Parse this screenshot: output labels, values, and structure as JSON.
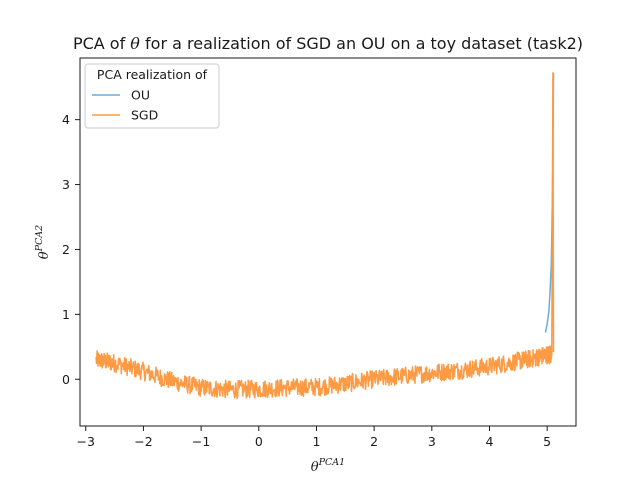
{
  "chart_data": {
    "type": "line",
    "title_pre": "PCA of ",
    "title_theta": "θ",
    "title_post": " for a realization of SGD an OU on a toy dataset (task2)",
    "xlabel_base": "θ",
    "xlabel_sup": "PCA1",
    "ylabel_base": "θ",
    "ylabel_sup": "PCA2",
    "xlim": [
      -3.1,
      5.5
    ],
    "ylim": [
      -0.72,
      4.95
    ],
    "xticks": [
      -3,
      -2,
      -1,
      0,
      1,
      2,
      3,
      4,
      5
    ],
    "xtick_labels": [
      "−3",
      "−2",
      "−1",
      "0",
      "1",
      "2",
      "3",
      "4",
      "5"
    ],
    "yticks": [
      0,
      1,
      2,
      3,
      4
    ],
    "ytick_labels": [
      "0",
      "1",
      "2",
      "3",
      "4"
    ],
    "grid": false,
    "legend": {
      "title": "PCA realization of",
      "placement": "top-left",
      "entries": [
        "OU",
        "SGD"
      ]
    },
    "series": [
      {
        "name": "OU",
        "color": "#6baed6",
        "x": [
          4.97,
          5.0,
          5.03,
          5.05,
          5.07,
          5.08,
          5.09,
          5.1,
          5.105,
          5.11
        ],
        "y": [
          0.72,
          0.85,
          1.05,
          1.35,
          1.75,
          2.2,
          2.8,
          3.5,
          4.1,
          4.72
        ]
      },
      {
        "name": "SGD",
        "color": "#fd9a43",
        "x": [
          -2.82,
          -2.5,
          -2.0,
          -1.5,
          -1.0,
          -0.5,
          0.0,
          0.5,
          1.0,
          1.5,
          2.0,
          2.5,
          3.0,
          3.5,
          4.0,
          4.5,
          4.8,
          5.0,
          5.08,
          5.1,
          5.11
        ],
        "y": [
          0.3,
          0.25,
          0.12,
          -0.03,
          -0.13,
          -0.16,
          -0.15,
          -0.13,
          -0.12,
          -0.07,
          0.0,
          0.05,
          0.1,
          0.14,
          0.2,
          0.28,
          0.33,
          0.38,
          0.38,
          4.72,
          0.42
        ],
        "noise_amplitude": 0.14
      }
    ]
  }
}
